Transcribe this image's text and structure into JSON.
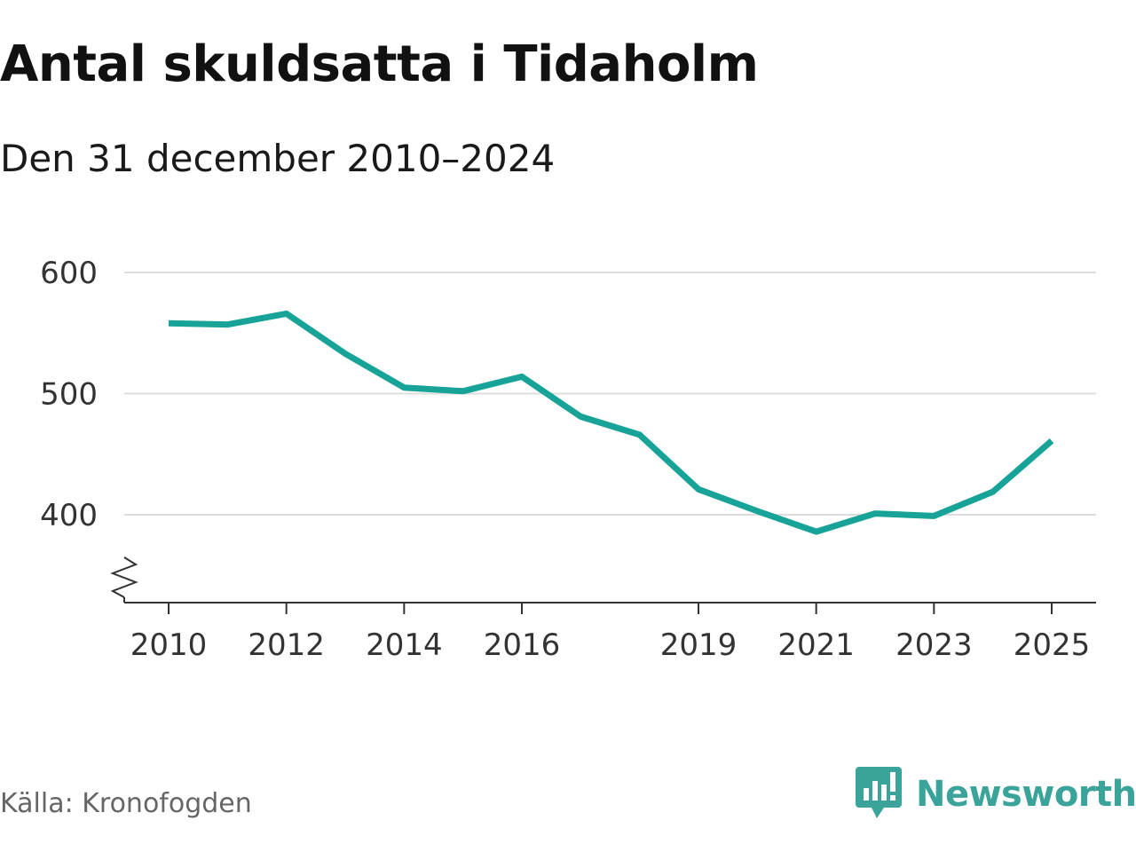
{
  "header": {
    "title": "Antal skuldsatta i Tidaholm",
    "subtitle": "Den 31 december 2010–2024"
  },
  "chart_data": {
    "type": "line",
    "title": "Antal skuldsatta i Tidaholm",
    "subtitle": "Den 31 december 2010–2024",
    "xlabel": "",
    "ylabel": "",
    "x": [
      2010,
      2011,
      2012,
      2013,
      2014,
      2015,
      2016,
      2017,
      2018,
      2019,
      2020,
      2021,
      2022,
      2023,
      2024,
      2025
    ],
    "series": [
      {
        "values": [
          558,
          557,
          566,
          533,
          505,
          502,
          514,
          481,
          466,
          421,
          403,
          386,
          401,
          399,
          419,
          461
        ]
      }
    ],
    "x_ticks": [
      "2010",
      "2012",
      "2014",
      "2016",
      "2019",
      "2021",
      "2023",
      "2025"
    ],
    "y_ticks": [
      "400",
      "500",
      "600"
    ],
    "xlim": [
      2010,
      2025
    ],
    "ylim": [
      328,
      600
    ],
    "y_axis_break": true,
    "grid": "horizontal",
    "line_color": "#17a398",
    "grid_color": "#dddddd"
  },
  "footer": {
    "source": "Källa: Kronofogden",
    "brand": "Newsworthy",
    "brand_icon": "newsworthy-logo-icon",
    "brand_color": "#3aa39a"
  }
}
